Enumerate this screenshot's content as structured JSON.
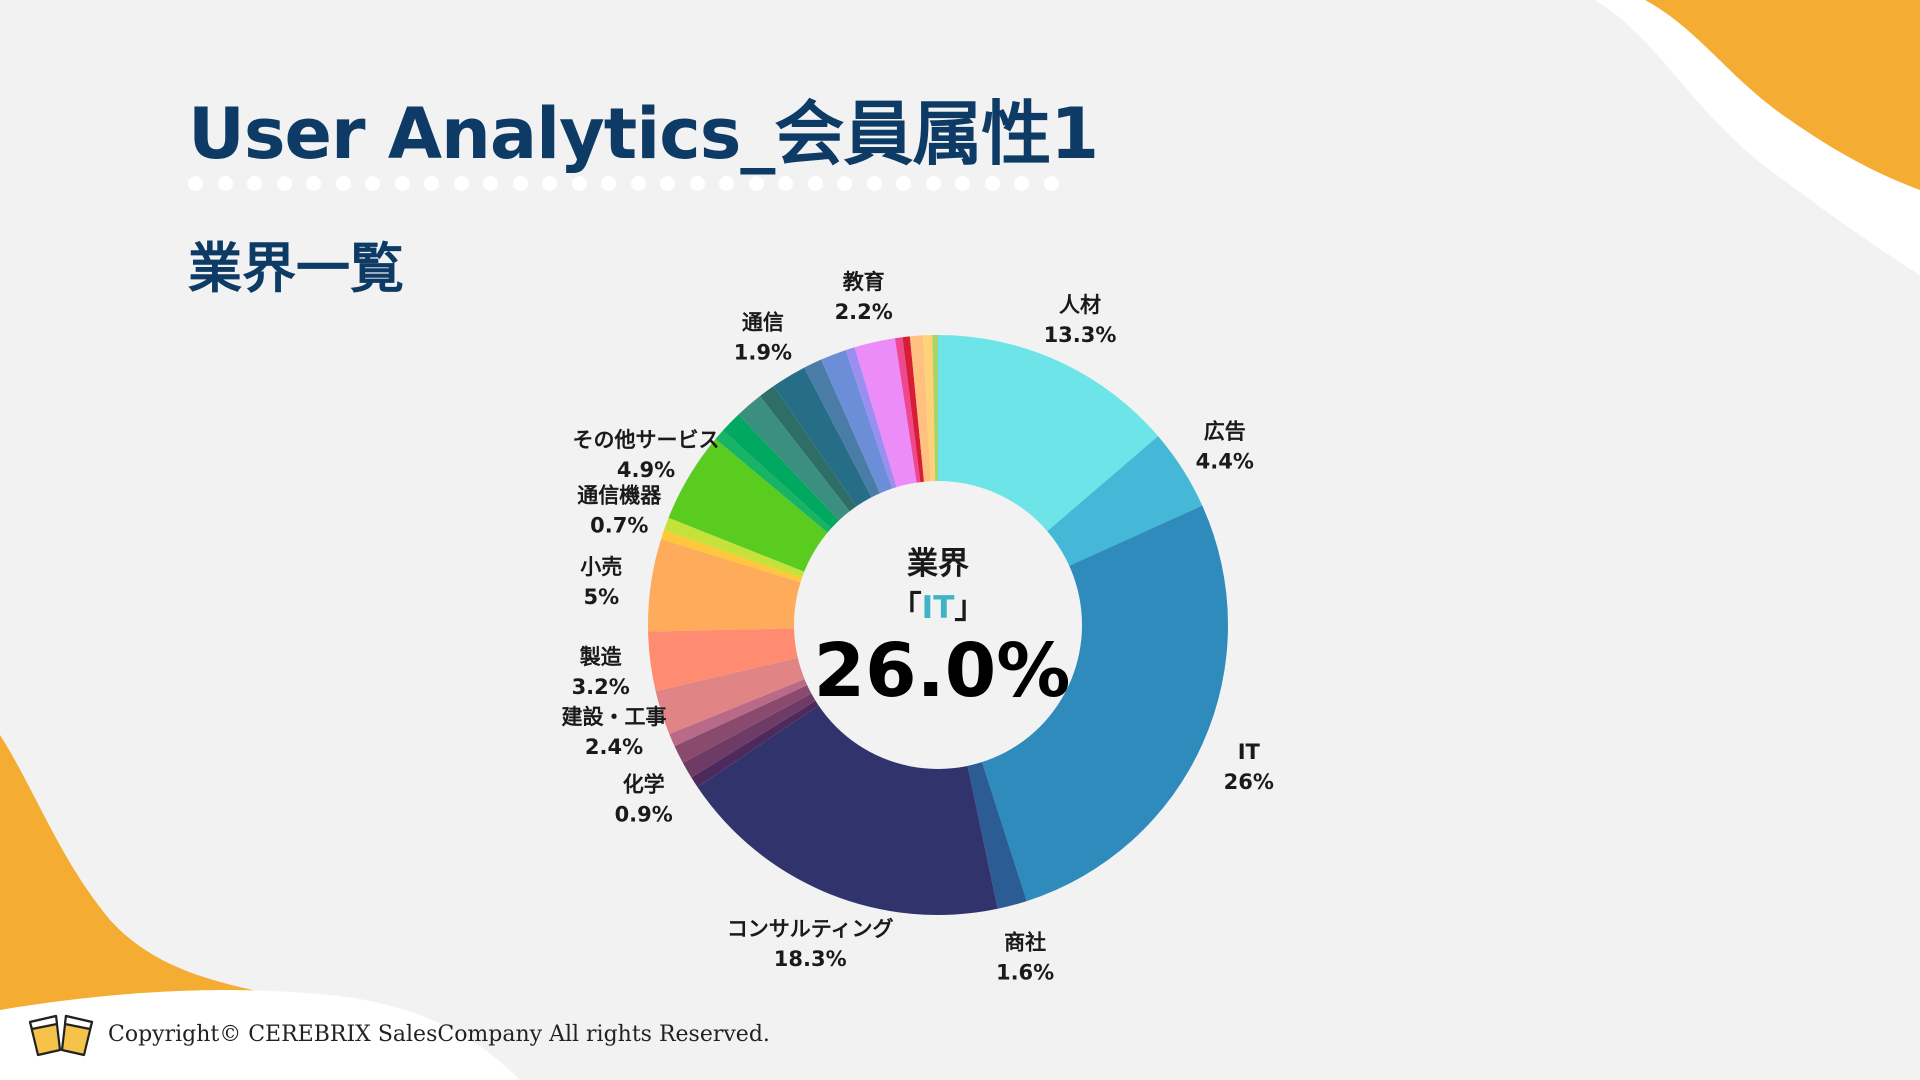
{
  "page": {
    "title": "User Analytics_会員属性1",
    "subtitle": "業界一覧",
    "copyright": "Copyright© CEREBRIX SalesCompany All rights Reserved."
  },
  "center": {
    "caption": "業界",
    "bracket_open": "「",
    "category": "IT",
    "bracket_close": "」",
    "value": "26.0%"
  },
  "chart_data": {
    "type": "pie",
    "style": "donut",
    "title": "",
    "slices": [
      {
        "label": "人材",
        "value": 13.3,
        "display": "13.3%",
        "color": "#6ce4e8"
      },
      {
        "label": "広告",
        "value": 4.4,
        "display": "4.4%",
        "color": "#44b8d6"
      },
      {
        "label": "IT",
        "value": 26.0,
        "display": "26%",
        "color": "#2e8bbc"
      },
      {
        "label": "商社",
        "value": 1.6,
        "display": "1.6%",
        "color": "#2c5c94"
      },
      {
        "label": "コンサルティング",
        "value": 18.3,
        "display": "18.3%",
        "color": "#31346c"
      },
      {
        "label": "",
        "value": 0.6,
        "color": "#4e2a5c"
      },
      {
        "label": "化学",
        "value": 0.9,
        "display": "0.9%",
        "color": "#6e3a66"
      },
      {
        "label": "",
        "value": 1.0,
        "color": "#8a4a6e"
      },
      {
        "label": "",
        "value": 0.7,
        "color": "#b86a88"
      },
      {
        "label": "建設・工事",
        "value": 2.4,
        "display": "2.4%",
        "color": "#e08486"
      },
      {
        "label": "製造",
        "value": 3.2,
        "display": "3.2%",
        "color": "#ff8c70"
      },
      {
        "label": "小売",
        "value": 5.0,
        "display": "5%",
        "color": "#ffab5c"
      },
      {
        "label": "",
        "value": 0.5,
        "color": "#ffc83c"
      },
      {
        "label": "通信機器",
        "value": 0.7,
        "display": "0.7%",
        "color": "#c4e23a"
      },
      {
        "label": "その他サービス",
        "value": 4.9,
        "display": "4.9%",
        "color": "#5acc20"
      },
      {
        "label": "",
        "value": 0.6,
        "color": "#18b466"
      },
      {
        "label": "",
        "value": 1.2,
        "color": "#00a860"
      },
      {
        "label": "",
        "value": 1.5,
        "color": "#3b8f7e"
      },
      {
        "label": "",
        "value": 0.9,
        "color": "#2e6e66"
      },
      {
        "label": "通信",
        "value": 1.9,
        "display": "1.9%",
        "color": "#266e88"
      },
      {
        "label": "",
        "value": 1.0,
        "color": "#4a7ca8"
      },
      {
        "label": "",
        "value": 1.4,
        "color": "#6c8ed8"
      },
      {
        "label": "",
        "value": 0.5,
        "color": "#9a8ef0"
      },
      {
        "label": "教育",
        "value": 2.2,
        "display": "2.2%",
        "color": "#ec8cf8"
      },
      {
        "label": "",
        "value": 0.4,
        "color": "#f04890"
      },
      {
        "label": "",
        "value": 0.4,
        "color": "#d81e36"
      },
      {
        "label": "",
        "value": 0.7,
        "color": "#ffc080"
      },
      {
        "label": "",
        "value": 0.5,
        "color": "#ffd27a"
      },
      {
        "label": "",
        "value": 0.3,
        "color": "#a8d46a"
      }
    ]
  }
}
